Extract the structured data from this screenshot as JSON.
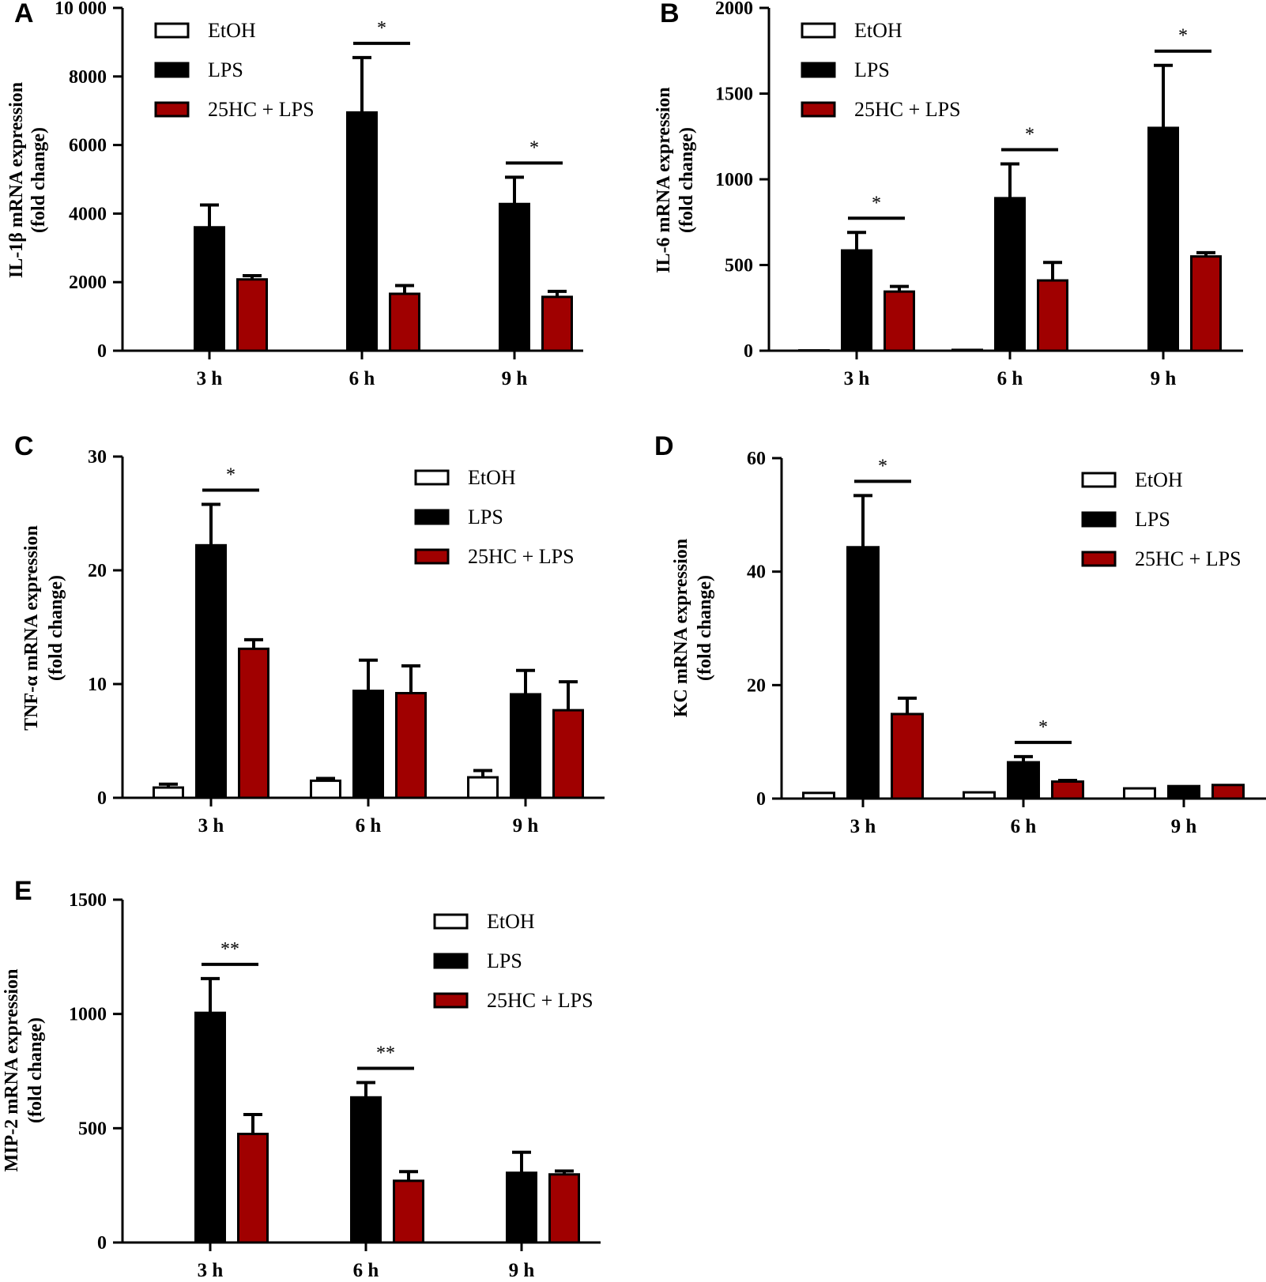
{
  "colors": {
    "EtOH": "#ffffff",
    "LPS": "#000000",
    "25HC + LPS": "#a00000",
    "stroke": "#000000"
  },
  "chart_data": [
    {
      "panel": "A",
      "type": "bar",
      "ylabel": [
        "IL-1β  mRNA expression",
        "(fold change)"
      ],
      "ylim": [
        0,
        10000
      ],
      "yticks": [
        0,
        2000,
        4000,
        6000,
        8000,
        10000
      ],
      "ytick_labels": [
        "0",
        "2000",
        "4000",
        "6000",
        "8000",
        "10 000"
      ],
      "categories": [
        "3 h",
        "6 h",
        "9 h"
      ],
      "legend": [
        "EtOH",
        "LPS",
        "25HC + LPS"
      ],
      "legend_placement": "top-left",
      "series": [
        {
          "name": "EtOH",
          "values": [
            0,
            0,
            0
          ],
          "errors": [
            0,
            0,
            0
          ]
        },
        {
          "name": "LPS",
          "values": [
            3600,
            6950,
            4280
          ],
          "errors": [
            650,
            1600,
            780
          ]
        },
        {
          "name": "25HC + LPS",
          "values": [
            2080,
            1660,
            1570
          ],
          "errors": [
            110,
            240,
            160
          ]
        }
      ],
      "significance": [
        {
          "category": "6 h",
          "label": "*"
        },
        {
          "category": "9 h",
          "label": "*"
        }
      ]
    },
    {
      "panel": "B",
      "type": "bar",
      "ylabel": [
        "IL-6 mRNA expression",
        "(fold change)"
      ],
      "ylim": [
        0,
        2000
      ],
      "yticks": [
        0,
        500,
        1000,
        1500,
        2000
      ],
      "ytick_labels": [
        "0",
        "500",
        "1000",
        "1500",
        "2000"
      ],
      "categories": [
        "3 h",
        "6 h",
        "9 h"
      ],
      "legend": [
        "EtOH",
        "LPS",
        "25HC + LPS"
      ],
      "legend_placement": "top-left",
      "series": [
        {
          "name": "EtOH",
          "values": [
            2,
            5,
            0
          ],
          "errors": [
            0,
            0,
            0
          ]
        },
        {
          "name": "LPS",
          "values": [
            585,
            890,
            1300
          ],
          "errors": [
            105,
            200,
            365
          ]
        },
        {
          "name": "25HC + LPS",
          "values": [
            345,
            410,
            550
          ],
          "errors": [
            30,
            105,
            22
          ]
        }
      ],
      "significance": [
        {
          "category": "3 h",
          "label": "*"
        },
        {
          "category": "6 h",
          "label": "*"
        },
        {
          "category": "9 h",
          "label": "*"
        }
      ]
    },
    {
      "panel": "C",
      "type": "bar",
      "ylabel": [
        "TNF-α  mRNA expression",
        "(fold change)"
      ],
      "ylim": [
        0,
        30
      ],
      "yticks": [
        0,
        10,
        20,
        30
      ],
      "ytick_labels": [
        "0",
        "10",
        "20",
        "30"
      ],
      "categories": [
        "3 h",
        "6 h",
        "9 h"
      ],
      "legend": [
        "EtOH",
        "LPS",
        "25HC + LPS"
      ],
      "legend_placement": "top-right",
      "series": [
        {
          "name": "EtOH",
          "values": [
            0.9,
            1.5,
            1.8
          ],
          "errors": [
            0.3,
            0.2,
            0.6
          ]
        },
        {
          "name": "LPS",
          "values": [
            22.2,
            9.4,
            9.1
          ],
          "errors": [
            3.6,
            2.7,
            2.1
          ]
        },
        {
          "name": "25HC + LPS",
          "values": [
            13.1,
            9.2,
            7.7
          ],
          "errors": [
            0.8,
            2.4,
            2.5
          ]
        }
      ],
      "significance": [
        {
          "category": "3 h",
          "label": "*"
        }
      ]
    },
    {
      "panel": "D",
      "type": "bar",
      "ylabel": [
        "KC mRNA expression",
        "(fold change)"
      ],
      "ylim": [
        0,
        60
      ],
      "yticks": [
        0,
        20,
        40,
        60
      ],
      "ytick_labels": [
        "0",
        "20",
        "40",
        "60"
      ],
      "categories": [
        "3 h",
        "6 h",
        "9 h"
      ],
      "legend": [
        "EtOH",
        "LPS",
        "25HC + LPS"
      ],
      "legend_placement": "top-right",
      "series": [
        {
          "name": "EtOH",
          "values": [
            1.0,
            1.1,
            1.8
          ],
          "errors": [
            0,
            0,
            0
          ]
        },
        {
          "name": "LPS",
          "values": [
            44.3,
            6.4,
            2.2
          ],
          "errors": [
            9.1,
            1.0,
            0
          ]
        },
        {
          "name": "25HC + LPS",
          "values": [
            14.9,
            3.0,
            2.4
          ],
          "errors": [
            2.8,
            0.2,
            0
          ]
        }
      ],
      "significance": [
        {
          "category": "3 h",
          "label": "*"
        },
        {
          "category": "6 h",
          "label": "*"
        }
      ]
    },
    {
      "panel": "E",
      "type": "bar",
      "ylabel": [
        "MIP-2 mRNA expression",
        "(fold change)"
      ],
      "ylim": [
        0,
        1500
      ],
      "yticks": [
        0,
        500,
        1000,
        1500
      ],
      "ytick_labels": [
        "0",
        "500",
        "1000",
        "1500"
      ],
      "categories": [
        "3 h",
        "6 h",
        "9 h"
      ],
      "legend": [
        "EtOH",
        "LPS",
        "25HC + LPS"
      ],
      "legend_placement": "top-right",
      "series": [
        {
          "name": "EtOH",
          "values": [
            0,
            0,
            0
          ],
          "errors": [
            0,
            0,
            0
          ]
        },
        {
          "name": "LPS",
          "values": [
            1005,
            635,
            305
          ],
          "errors": [
            150,
            65,
            90
          ]
        },
        {
          "name": "25HC + LPS",
          "values": [
            475,
            270,
            298
          ],
          "errors": [
            85,
            40,
            15
          ]
        }
      ],
      "significance": [
        {
          "category": "3 h",
          "label": "**"
        },
        {
          "category": "6 h",
          "label": "**"
        }
      ]
    }
  ]
}
